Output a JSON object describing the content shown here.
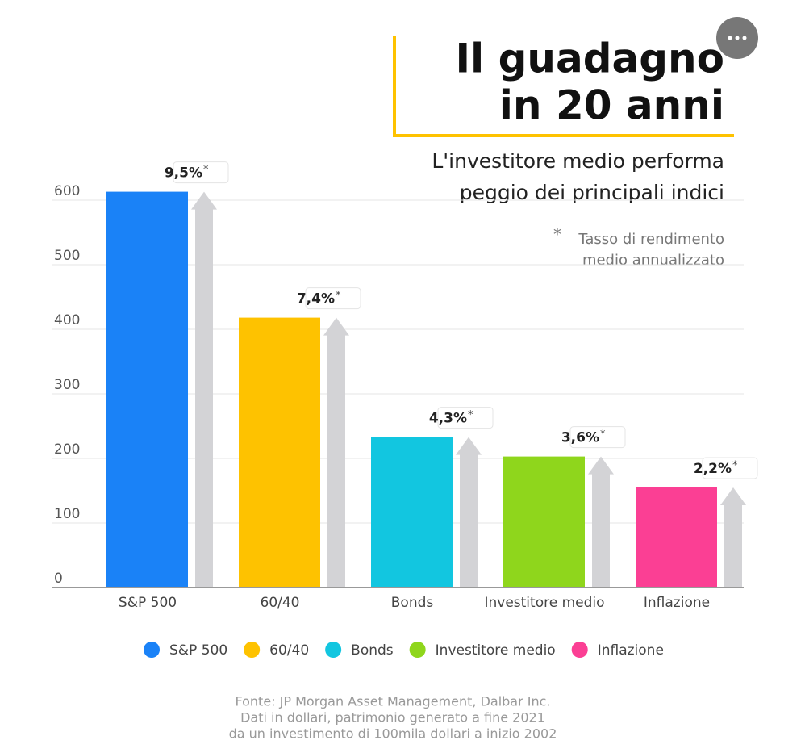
{
  "chart_data": {
    "type": "bar",
    "title": [
      "Il guadagno",
      "in 20 anni"
    ],
    "subtitle": [
      "L'investitore medio performa",
      "peggio dei principali indici"
    ],
    "note_mark": "*",
    "note": [
      "Tasso di rendimento",
      "medio annualizzato"
    ],
    "categories": [
      "S&P 500",
      "60/40",
      "Bonds",
      "Investitore medio",
      "Inflazione"
    ],
    "values": [
      613,
      418,
      233,
      203,
      155
    ],
    "colors": [
      "#1a82f7",
      "#fec200",
      "#12c6e0",
      "#8fd61c",
      "#fb3f94"
    ],
    "annual_returns": {
      "values": [
        9.5,
        7.4,
        4.3,
        3.6,
        2.2
      ],
      "value_labels": [
        "9,5%",
        "7,4%",
        "4,3%",
        "3,6%",
        "2,2%"
      ]
    },
    "ylim": [
      0,
      600
    ],
    "yticks": [
      0,
      100,
      200,
      300,
      400,
      500,
      600
    ],
    "grid": true,
    "source": [
      "Fonte: JP Morgan Asset Management, Dalbar Inc.",
      "Dati in dollari, patrimonio generato a fine 2021",
      "da un investimento di 100mila dollari a inizio 2002"
    ]
  }
}
